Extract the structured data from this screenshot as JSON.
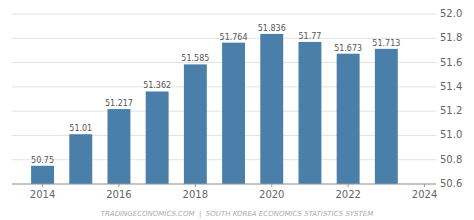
{
  "chart_data": {
    "type": "bar",
    "x": [
      2014,
      2015,
      2016,
      2017,
      2018,
      2019,
      2020,
      2021,
      2022,
      2023
    ],
    "values": [
      50.75,
      51.01,
      51.217,
      51.362,
      51.585,
      51.764,
      51.836,
      51.77,
      51.673,
      51.713
    ],
    "color": "#4a7faa",
    "xlim": [
      2013.2,
      2024.3
    ],
    "xticks": [
      2014,
      2016,
      2018,
      2020,
      2022,
      2024
    ],
    "ylim": [
      50.6,
      52.0
    ],
    "yticks": [
      50.6,
      50.8,
      {
        "value": 51.0,
        "label": "51.0"
      },
      51.2,
      51.4,
      51.6,
      51.8,
      {
        "value": 52.0,
        "label": "52.0"
      }
    ],
    "grid": true,
    "data_labels": true,
    "annotations": [
      "TRADINGECONOMICS.COM  |  SOUTH KOREA ECONOMICS STATISTICS SYSTEM"
    ]
  }
}
